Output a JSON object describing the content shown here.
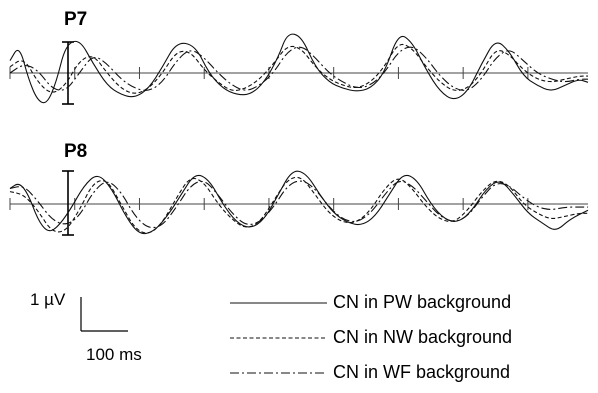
{
  "chart_data": {
    "type": "line",
    "x_unit": "ms",
    "y_unit": "µV",
    "scale_bar": {
      "y_label": "1 µV",
      "y_value": 1,
      "x_label": "100 ms",
      "x_value": 100
    },
    "legend_placement": "bottom-right",
    "series_meta": [
      {
        "name": "CN in PW background",
        "style": "solid"
      },
      {
        "name": "CN in NW background",
        "style": "dashed"
      },
      {
        "name": "CN in WF background",
        "style": "dash-dot"
      }
    ],
    "panels": [
      {
        "title": "P7",
        "series": [
          {
            "name": "CN in PW background",
            "x": [
              0,
              20,
              40,
              60,
              80,
              100,
              120,
              150,
              180,
              210,
              240,
              270,
              300,
              330,
              360,
              400,
              430,
              460,
              490,
              520,
              550,
              580,
              600,
              630,
              660,
              690,
              720,
              750,
              780,
              810,
              840,
              870,
              900,
              930,
              960,
              990,
              1020,
              1050,
              1080,
              1110,
              1140,
              1170,
              1200,
              1230,
              1250
            ],
            "y": [
              0.4,
              0.9,
              -0.2,
              -0.9,
              -1.0,
              -0.3,
              0.9,
              1.1,
              0.3,
              -0.4,
              -0.7,
              -0.8,
              -0.5,
              0.2,
              1.0,
              0.9,
              0.0,
              -0.5,
              -0.7,
              -0.7,
              -0.3,
              0.5,
              1.3,
              1.2,
              0.2,
              -0.3,
              -0.5,
              -0.6,
              -0.5,
              0.0,
              1.3,
              1.0,
              0.1,
              -0.6,
              -0.9,
              -0.6,
              0.3,
              1.1,
              0.7,
              -0.1,
              -0.4,
              -0.6,
              -0.4,
              -0.2,
              -0.3
            ]
          },
          {
            "name": "CN in NW background",
            "x": [
              0,
              30,
              60,
              90,
              120,
              150,
              180,
              210,
              240,
              270,
              300,
              330,
              360,
              390,
              420,
              450,
              480,
              510,
              540,
              570,
              600,
              630,
              660,
              690,
              720,
              750,
              780,
              810,
              840,
              870,
              900,
              930,
              960,
              990,
              1020,
              1050,
              1080,
              1110,
              1140,
              1170,
              1200,
              1230,
              1250
            ],
            "y": [
              0.2,
              0.5,
              -0.3,
              -0.7,
              -0.4,
              0.4,
              0.6,
              0.0,
              -0.5,
              -0.7,
              -0.5,
              0.0,
              0.7,
              0.7,
              0.1,
              -0.3,
              -0.6,
              -0.5,
              -0.2,
              0.3,
              0.9,
              0.8,
              0.2,
              -0.2,
              -0.4,
              -0.5,
              -0.3,
              0.2,
              1.0,
              0.8,
              0.2,
              -0.3,
              -0.6,
              -0.5,
              0.0,
              0.8,
              0.6,
              0.1,
              -0.2,
              -0.3,
              -0.2,
              -0.1,
              -0.1
            ]
          },
          {
            "name": "CN in WF background",
            "x": [
              0,
              30,
              60,
              90,
              120,
              150,
              180,
              210,
              240,
              270,
              300,
              330,
              360,
              390,
              420,
              450,
              480,
              510,
              540,
              570,
              600,
              630,
              660,
              690,
              720,
              750,
              780,
              810,
              840,
              870,
              900,
              930,
              960,
              990,
              1020,
              1050,
              1080,
              1110,
              1140,
              1170,
              1200,
              1230,
              1250
            ],
            "y": [
              0.0,
              0.3,
              0.1,
              -0.5,
              -0.6,
              0.0,
              0.6,
              0.3,
              -0.2,
              -0.5,
              -0.6,
              -0.3,
              0.4,
              0.8,
              0.5,
              0.0,
              -0.4,
              -0.6,
              -0.4,
              0.0,
              0.7,
              0.9,
              0.5,
              0.0,
              -0.3,
              -0.5,
              -0.4,
              0.0,
              0.7,
              0.9,
              0.5,
              -0.1,
              -0.5,
              -0.6,
              -0.2,
              0.5,
              0.8,
              0.4,
              0.0,
              -0.2,
              -0.3,
              -0.2,
              -0.2
            ]
          }
        ]
      },
      {
        "title": "P8",
        "series": [
          {
            "name": "CN in PW background",
            "x": [
              0,
              20,
              40,
              60,
              80,
              100,
              130,
              160,
              190,
              220,
              250,
              280,
              310,
              340,
              370,
              400,
              430,
              460,
              490,
              520,
              550,
              580,
              610,
              640,
              670,
              700,
              730,
              760,
              790,
              820,
              850,
              880,
              910,
              940,
              970,
              1000,
              1030,
              1060,
              1090,
              1120,
              1150,
              1180,
              1210,
              1250
            ],
            "y": [
              0.5,
              0.7,
              0.3,
              -0.5,
              -0.9,
              -0.8,
              -0.2,
              0.6,
              1.0,
              0.5,
              -0.4,
              -1.0,
              -0.9,
              -0.4,
              0.3,
              1.0,
              0.8,
              0.0,
              -0.6,
              -0.8,
              -0.5,
              0.3,
              1.1,
              1.0,
              0.3,
              -0.3,
              -0.6,
              -0.7,
              -0.4,
              0.3,
              1.0,
              0.8,
              0.0,
              -0.5,
              -0.6,
              -0.2,
              0.5,
              0.8,
              0.3,
              -0.3,
              -0.6,
              -0.9,
              -0.5,
              -0.2
            ]
          },
          {
            "name": "CN in NW background",
            "x": [
              0,
              30,
              60,
              90,
              120,
              150,
              180,
              210,
              240,
              270,
              300,
              330,
              360,
              390,
              420,
              450,
              480,
              510,
              540,
              570,
              600,
              630,
              660,
              690,
              720,
              750,
              780,
              810,
              840,
              870,
              900,
              930,
              960,
              990,
              1020,
              1050,
              1080,
              1110,
              1140,
              1170,
              1200,
              1230,
              1250
            ],
            "y": [
              0.4,
              0.3,
              -0.2,
              -0.9,
              -0.9,
              -0.2,
              0.7,
              0.8,
              0.0,
              -0.8,
              -1.0,
              -0.6,
              0.2,
              0.9,
              0.7,
              0.0,
              -0.5,
              -0.8,
              -0.6,
              0.1,
              0.8,
              0.9,
              0.3,
              -0.3,
              -0.6,
              -0.6,
              -0.2,
              0.5,
              0.9,
              0.5,
              -0.1,
              -0.5,
              -0.6,
              -0.2,
              0.4,
              0.8,
              0.6,
              0.0,
              -0.3,
              -0.5,
              -0.4,
              -0.3,
              -0.3
            ]
          },
          {
            "name": "CN in WF background",
            "x": [
              0,
              30,
              60,
              90,
              120,
              150,
              180,
              210,
              240,
              270,
              300,
              330,
              360,
              390,
              420,
              450,
              480,
              510,
              540,
              570,
              600,
              630,
              660,
              690,
              720,
              750,
              780,
              810,
              840,
              870,
              900,
              930,
              960,
              990,
              1020,
              1050,
              1080,
              1110,
              1140,
              1170,
              1200,
              1230,
              1250
            ],
            "y": [
              0.5,
              0.6,
              0.1,
              -0.5,
              -0.7,
              -0.4,
              0.4,
              0.8,
              0.4,
              -0.4,
              -0.8,
              -0.7,
              -0.1,
              0.6,
              0.8,
              0.3,
              -0.3,
              -0.7,
              -0.6,
              -0.1,
              0.6,
              0.8,
              0.5,
              -0.1,
              -0.5,
              -0.6,
              -0.3,
              0.3,
              0.8,
              0.6,
              0.1,
              -0.4,
              -0.6,
              -0.4,
              0.2,
              0.7,
              0.6,
              0.2,
              -0.1,
              -0.2,
              -0.1,
              -0.1,
              -0.1
            ]
          }
        ]
      }
    ]
  }
}
